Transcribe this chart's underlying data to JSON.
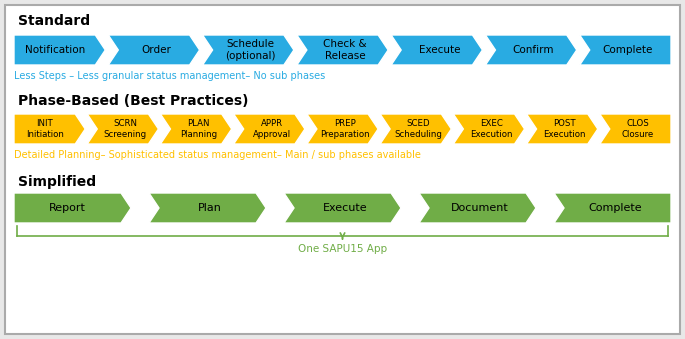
{
  "bg_color": "#e8e8e8",
  "inner_bg": "#ffffff",
  "border_color": "#aaaaaa",
  "standard_title": "Standard",
  "standard_color": "#29ABE2",
  "standard_steps": [
    "Notification",
    "Order",
    "Schedule\n(optional)",
    "Check &\nRelease",
    "Execute",
    "Confirm",
    "Complete"
  ],
  "standard_note": "Less Steps – Less granular status management– No sub phases",
  "standard_note_color": "#29ABE2",
  "phase_title": "Phase-Based (Best Practices)",
  "phase_color": "#FFC000",
  "phase_steps": [
    "INIT\nInitiation",
    "SCRN\nScreening",
    "PLAN\nPlanning",
    "APPR\nApproval",
    "PREP\nPreparation",
    "SCED\nScheduling",
    "EXEC\nExecution",
    "POST\nExecution",
    "CLOS\nClosure"
  ],
  "phase_note": "Detailed Planning– Sophisticated status management– Main / sub phases available",
  "phase_note_color": "#FFC000",
  "simplified_title": "Simplified",
  "simplified_color": "#70AD47",
  "simplified_steps": [
    "Report",
    "Plan",
    "Execute",
    "Document",
    "Complete"
  ],
  "simplified_note": "One SAPU15 App",
  "simplified_note_color": "#70AD47",
  "fig_w": 6.85,
  "fig_h": 3.39,
  "dpi": 100
}
